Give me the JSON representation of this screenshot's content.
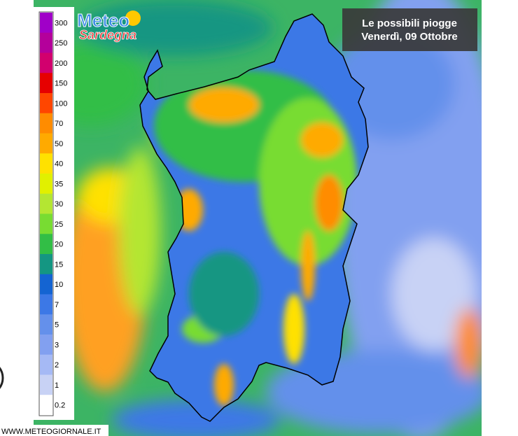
{
  "header": {
    "title_line1": "Le possibili piogge",
    "title_line2": "Venerdì, 09 Ottobre"
  },
  "logo": {
    "line1": "Meteo",
    "line2": "Sardegna"
  },
  "legend": {
    "labels": [
      300,
      250,
      200,
      150,
      100,
      70,
      50,
      40,
      35,
      30,
      25,
      20,
      15,
      10,
      7,
      5,
      3,
      2,
      1,
      0.2
    ],
    "colors": [
      "#a000c8",
      "#b4009b",
      "#d2006e",
      "#e60000",
      "#ff4600",
      "#ff8c00",
      "#ffaa00",
      "#ffe100",
      "#e1f000",
      "#b4e632",
      "#78dc32",
      "#32be46",
      "#149682",
      "#1464d2",
      "#3c78e6",
      "#6490eb",
      "#82a0f0",
      "#a5b9f5",
      "#c8d2f5",
      "#ffffff"
    ]
  },
  "footer": {
    "url": "WWW.METEOGIORNALE.IT"
  }
}
